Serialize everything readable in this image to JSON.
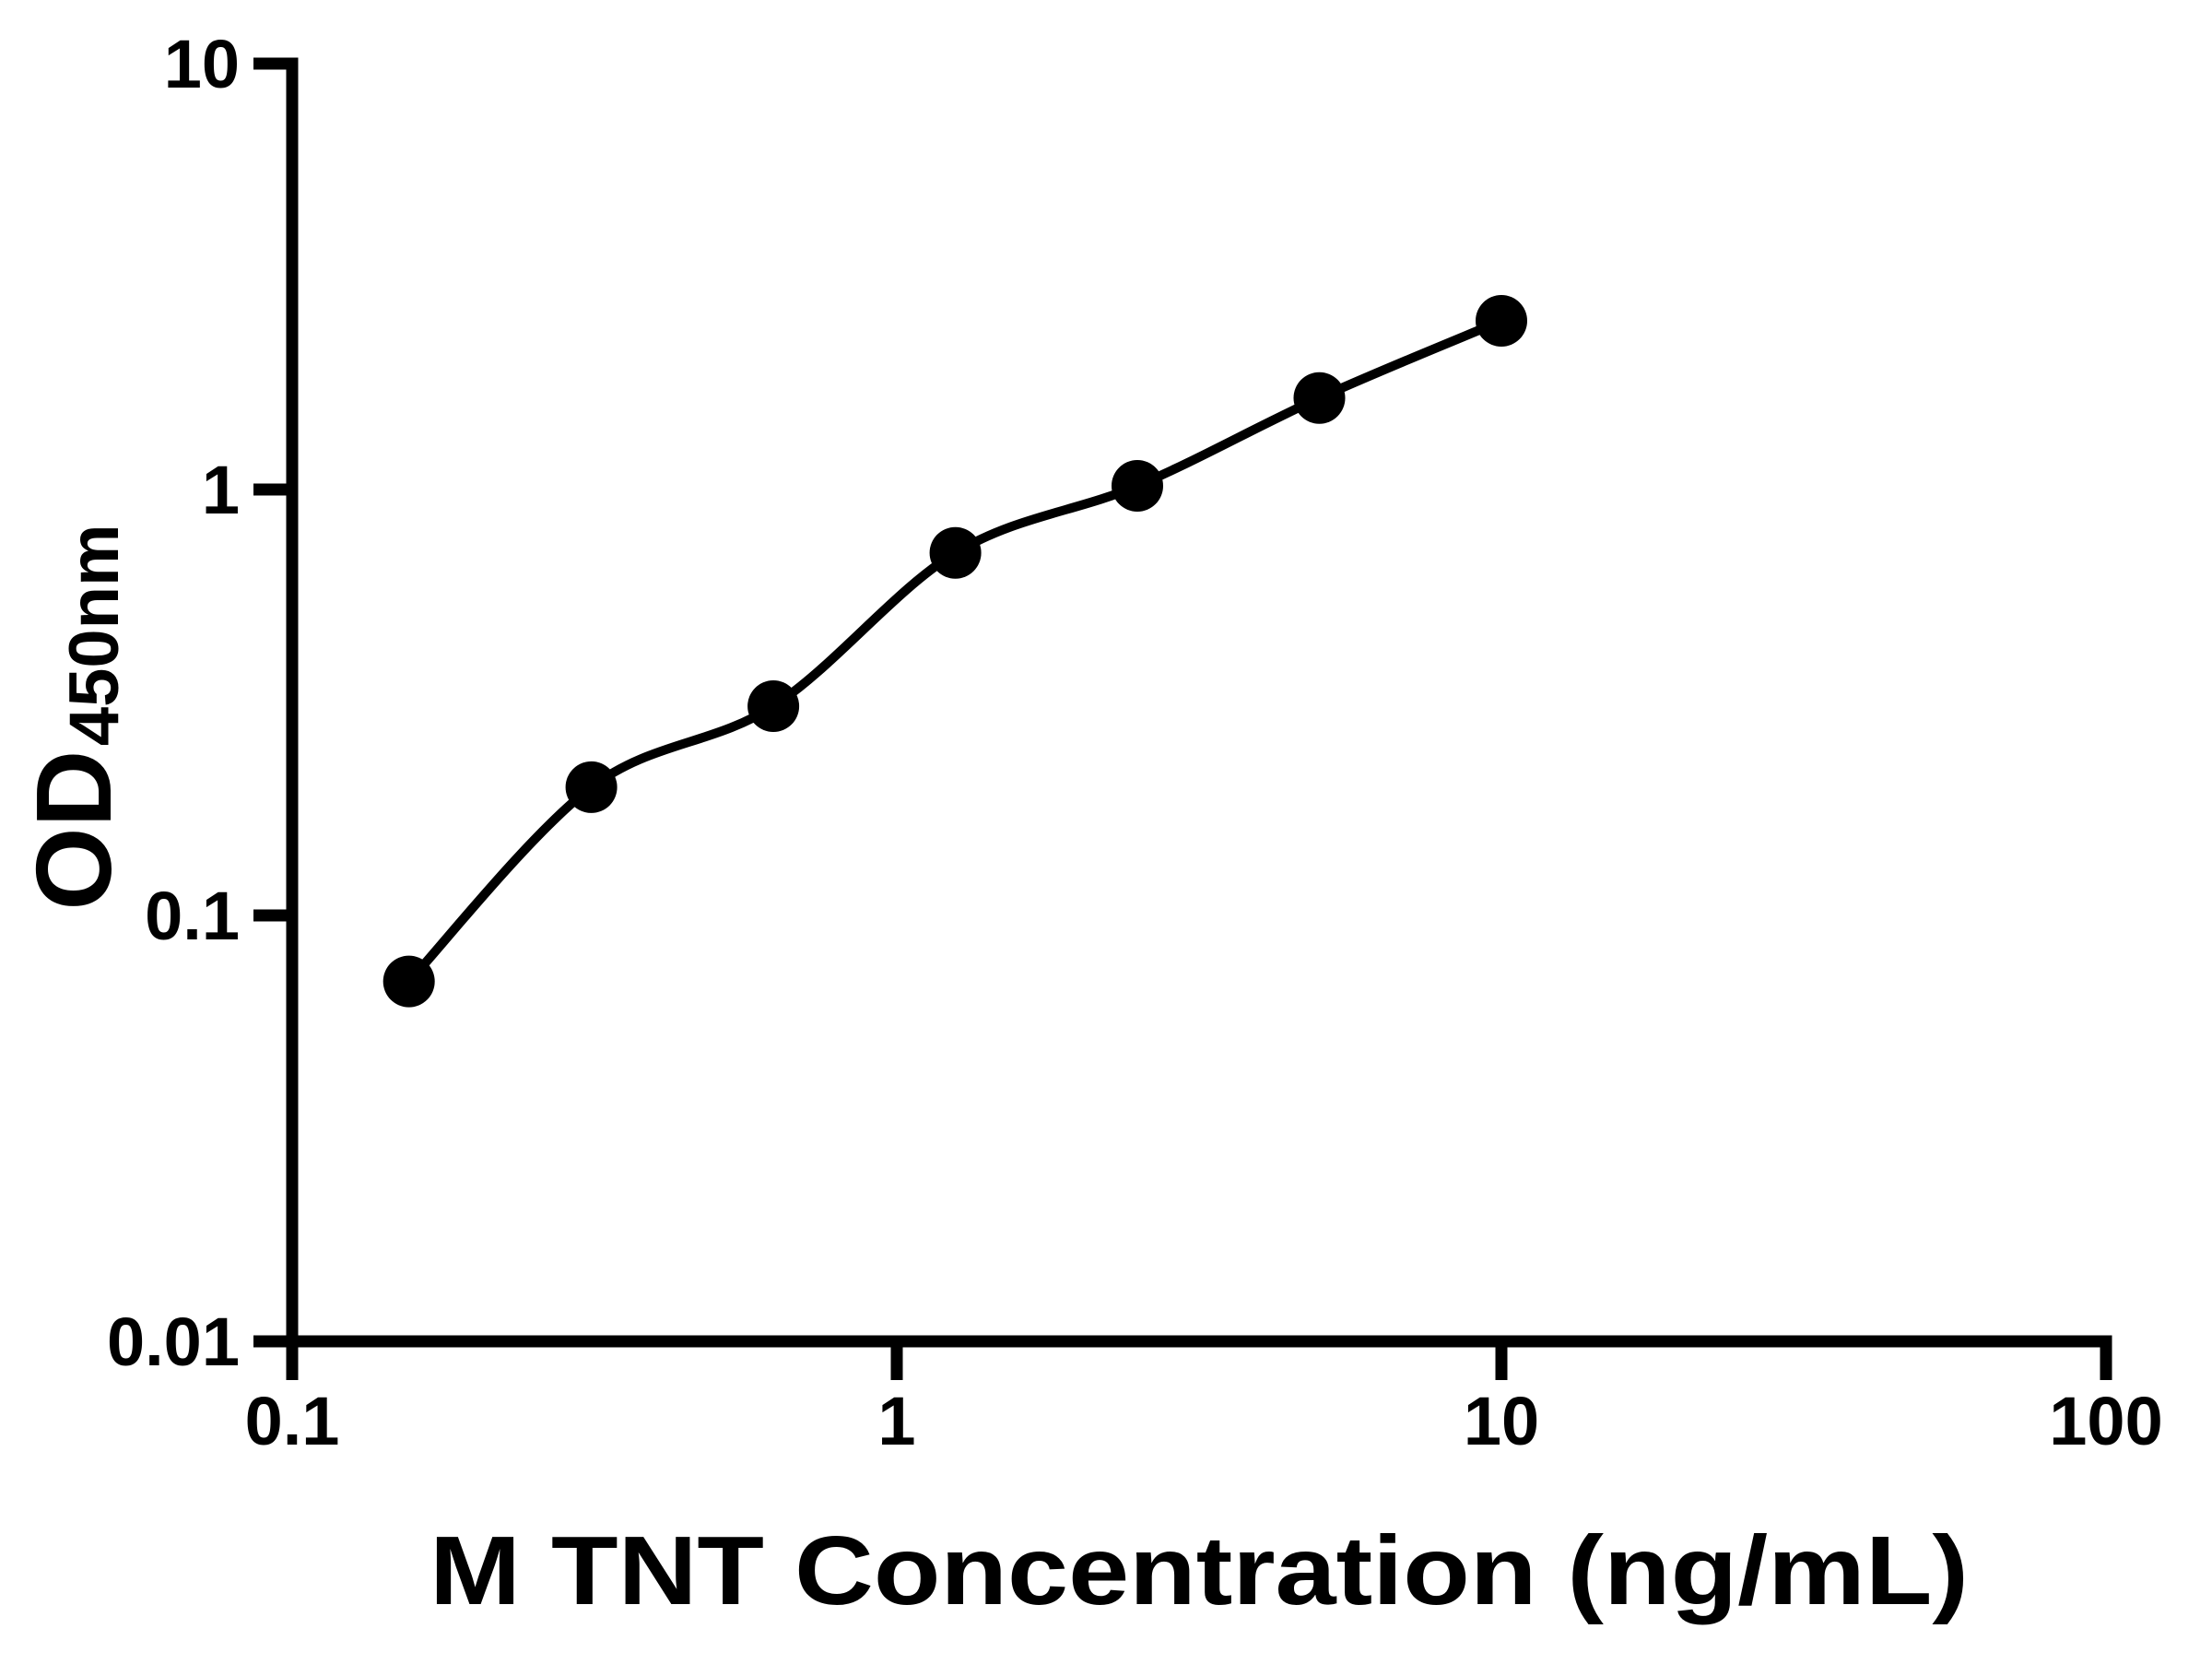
{
  "figure": {
    "background_color": "#ffffff",
    "foreground_color": "#000000"
  },
  "chart_data": {
    "type": "scatter",
    "title": "",
    "xlabel": "M TNT Concentration (ng/mL)",
    "ylabel_main": "OD",
    "ylabel_sub": "450nm",
    "x_scale": "log",
    "y_scale": "log",
    "xlim": [
      0.1,
      100
    ],
    "ylim": [
      0.01,
      10
    ],
    "x_ticks": {
      "values": [
        0.1,
        1,
        10,
        100
      ],
      "labels": [
        "0.1",
        "1",
        "10",
        "100"
      ]
    },
    "y_ticks": {
      "values": [
        10,
        1,
        0.1,
        0.01
      ],
      "labels": [
        "10",
        "1",
        "0.1",
        "0.01"
      ]
    },
    "grid": false,
    "legend": "none",
    "series": [
      {
        "name": "standard-curve",
        "marker": "filled-circle",
        "marker_color": "#000000",
        "line": "smooth-fit-curve",
        "line_color": "#000000",
        "points": [
          {
            "x": 0.156,
            "y": 0.07
          },
          {
            "x": 0.3125,
            "y": 0.2
          },
          {
            "x": 0.625,
            "y": 0.31
          },
          {
            "x": 1.25,
            "y": 0.71
          },
          {
            "x": 2.5,
            "y": 1.02
          },
          {
            "x": 5,
            "y": 1.64
          },
          {
            "x": 10,
            "y": 2.49
          }
        ]
      }
    ]
  }
}
